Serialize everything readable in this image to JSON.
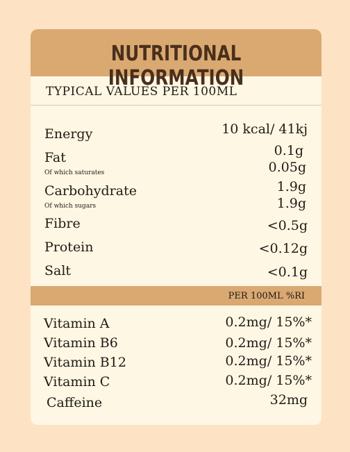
{
  "header": {
    "title": "NUTRITIONAL INFORMATION"
  },
  "subheading": "TYPICAL VALUES PER 100ML",
  "nutrients": [
    {
      "label": "Energy",
      "value": "10 kcal/ 41kj"
    },
    {
      "label": "Fat",
      "value": "0.1g"
    },
    {
      "label": "Of which saturates",
      "value": "0.05g"
    },
    {
      "label": "Carbohydrate",
      "value": "1.9g"
    },
    {
      "label": "Of which sugars",
      "value": "1.9g"
    },
    {
      "label": "Fibre",
      "value": "<0.5g"
    },
    {
      "label": "Protein",
      "value": "<0.12g"
    },
    {
      "label": "Salt",
      "value": "<0.1g"
    }
  ],
  "band": {
    "label": "PER 100ML %RI"
  },
  "vitamins": [
    {
      "label": "Vitamin A",
      "value": "0.2mg/ 15%*"
    },
    {
      "label": "Vitamin B6",
      "value": "0.2mg/ 15%*"
    },
    {
      "label": "Vitamin B12",
      "value": "0.2mg/ 15%*"
    },
    {
      "label": "Vitamin C",
      "value": "0.2mg/ 15%*"
    },
    {
      "label": "Caffeine",
      "value": "32mg"
    }
  ],
  "colors": {
    "page_background": "#fde3c4",
    "card_background": "#fdf7e3",
    "header_band": "#d9a971",
    "header_text": "#4a2f1c"
  }
}
